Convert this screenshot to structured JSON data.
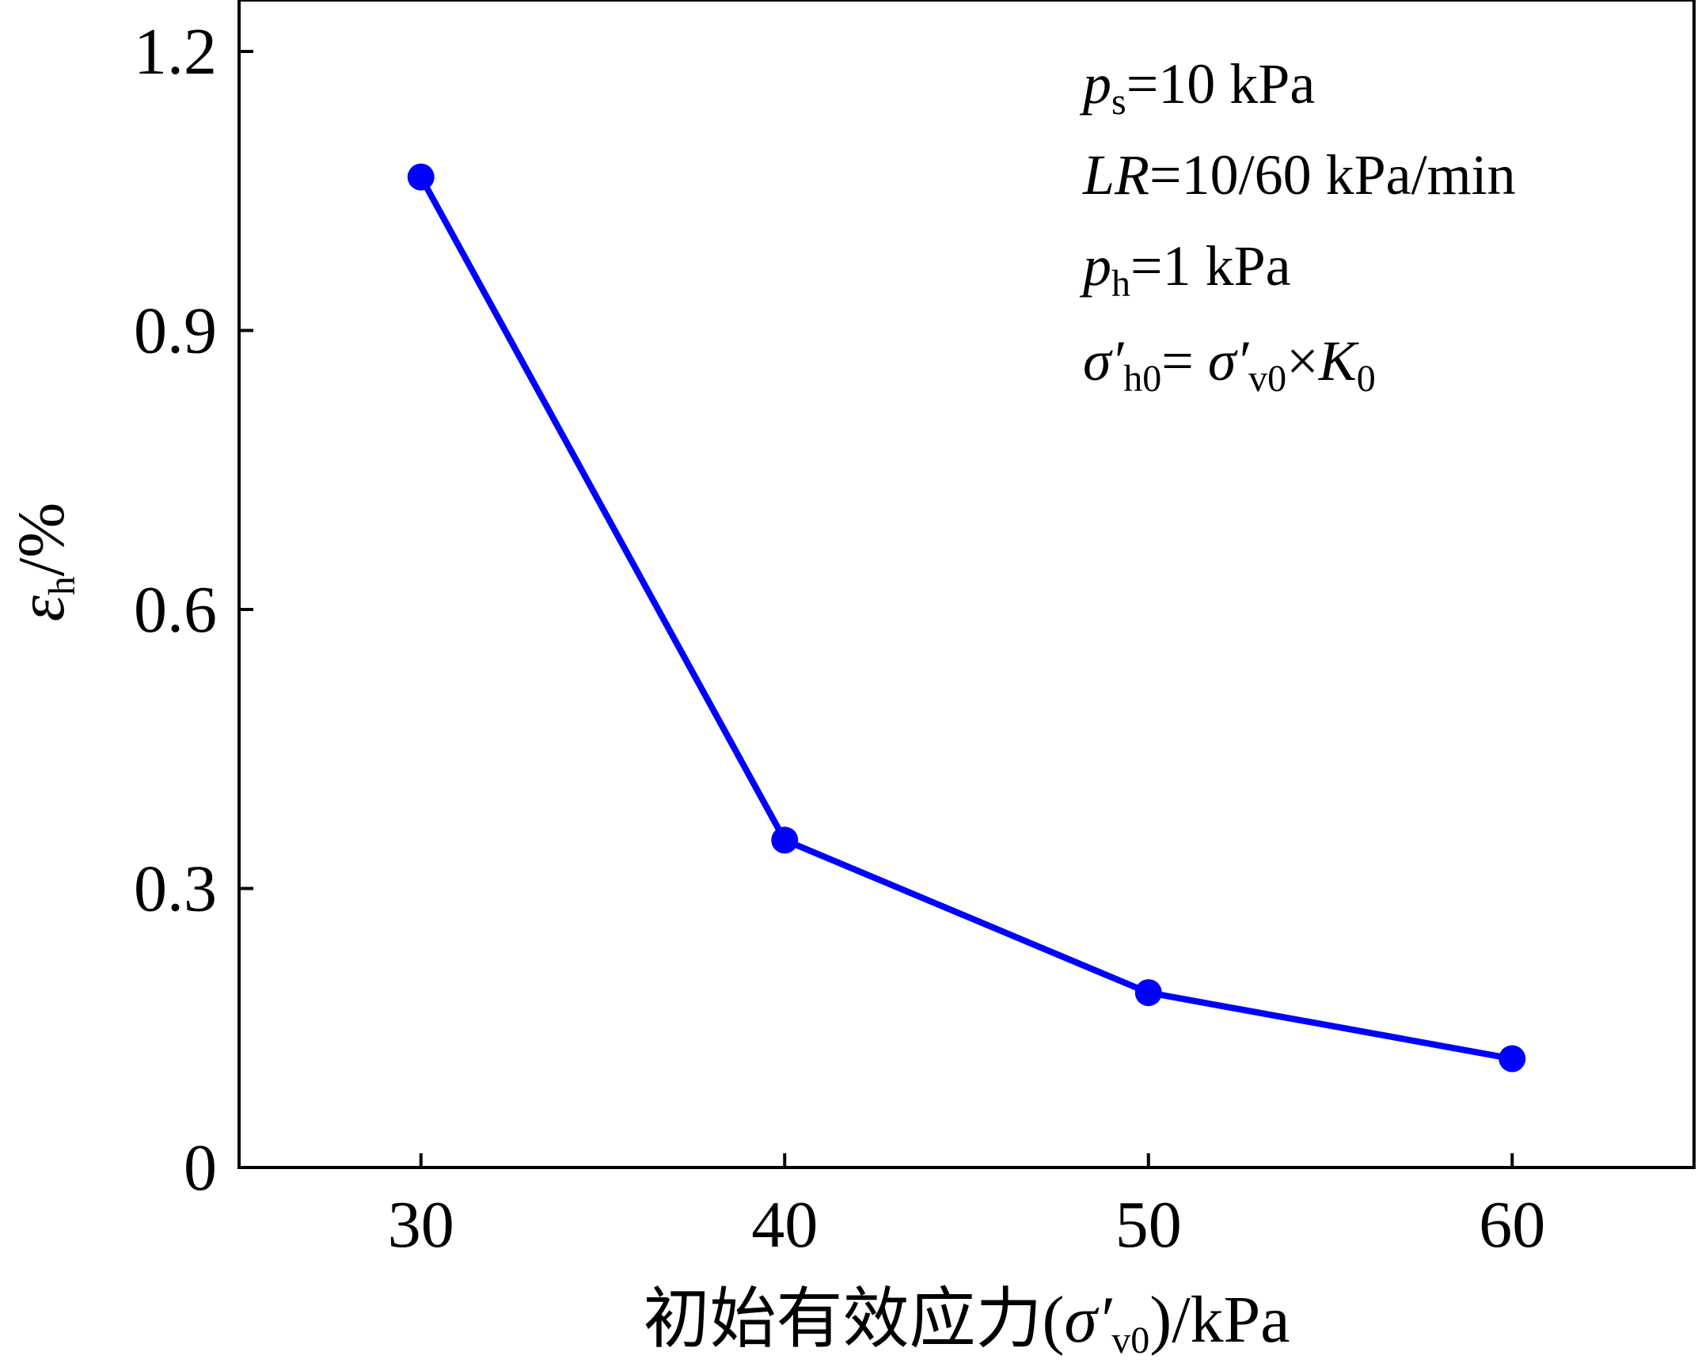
{
  "chart_data": {
    "type": "line",
    "title": "",
    "x": [
      30,
      40,
      50,
      60
    ],
    "series": [
      {
        "name": "εh",
        "values": [
          1.065,
          0.352,
          0.188,
          0.117
        ],
        "color": "#0000ff"
      }
    ],
    "xlim": [
      25,
      65
    ],
    "ylim": [
      0,
      1.2
    ],
    "x_ticks": [
      "30",
      "40",
      "50",
      "60"
    ],
    "y_ticks": [
      "0",
      "0.3",
      "0.6",
      "0.9",
      "1.2"
    ],
    "xlabel": {
      "prefix": "初始有效应力(",
      "symbol": "σ′",
      "subscript": "v0",
      "suffix": ")/kPa"
    },
    "ylabel": {
      "symbol": "ε",
      "subscript": "h",
      "suffix": "/%"
    },
    "annotations": [
      {
        "italic": "p",
        "sub": "s",
        "rest": "=10 kPa"
      },
      {
        "italic": "LR",
        "sub": "",
        "rest": "=10/60 kPa/min"
      },
      {
        "italic": "p",
        "sub": "h",
        "rest": "=1 kPa"
      },
      {
        "sym1": "σ′",
        "sub1": "h0",
        "eq": "= ",
        "sym2": "σ′",
        "sub2": "v0",
        "times": "×",
        "sym3": "K",
        "sub3": "0"
      }
    ],
    "grid": false,
    "legend": "none"
  }
}
